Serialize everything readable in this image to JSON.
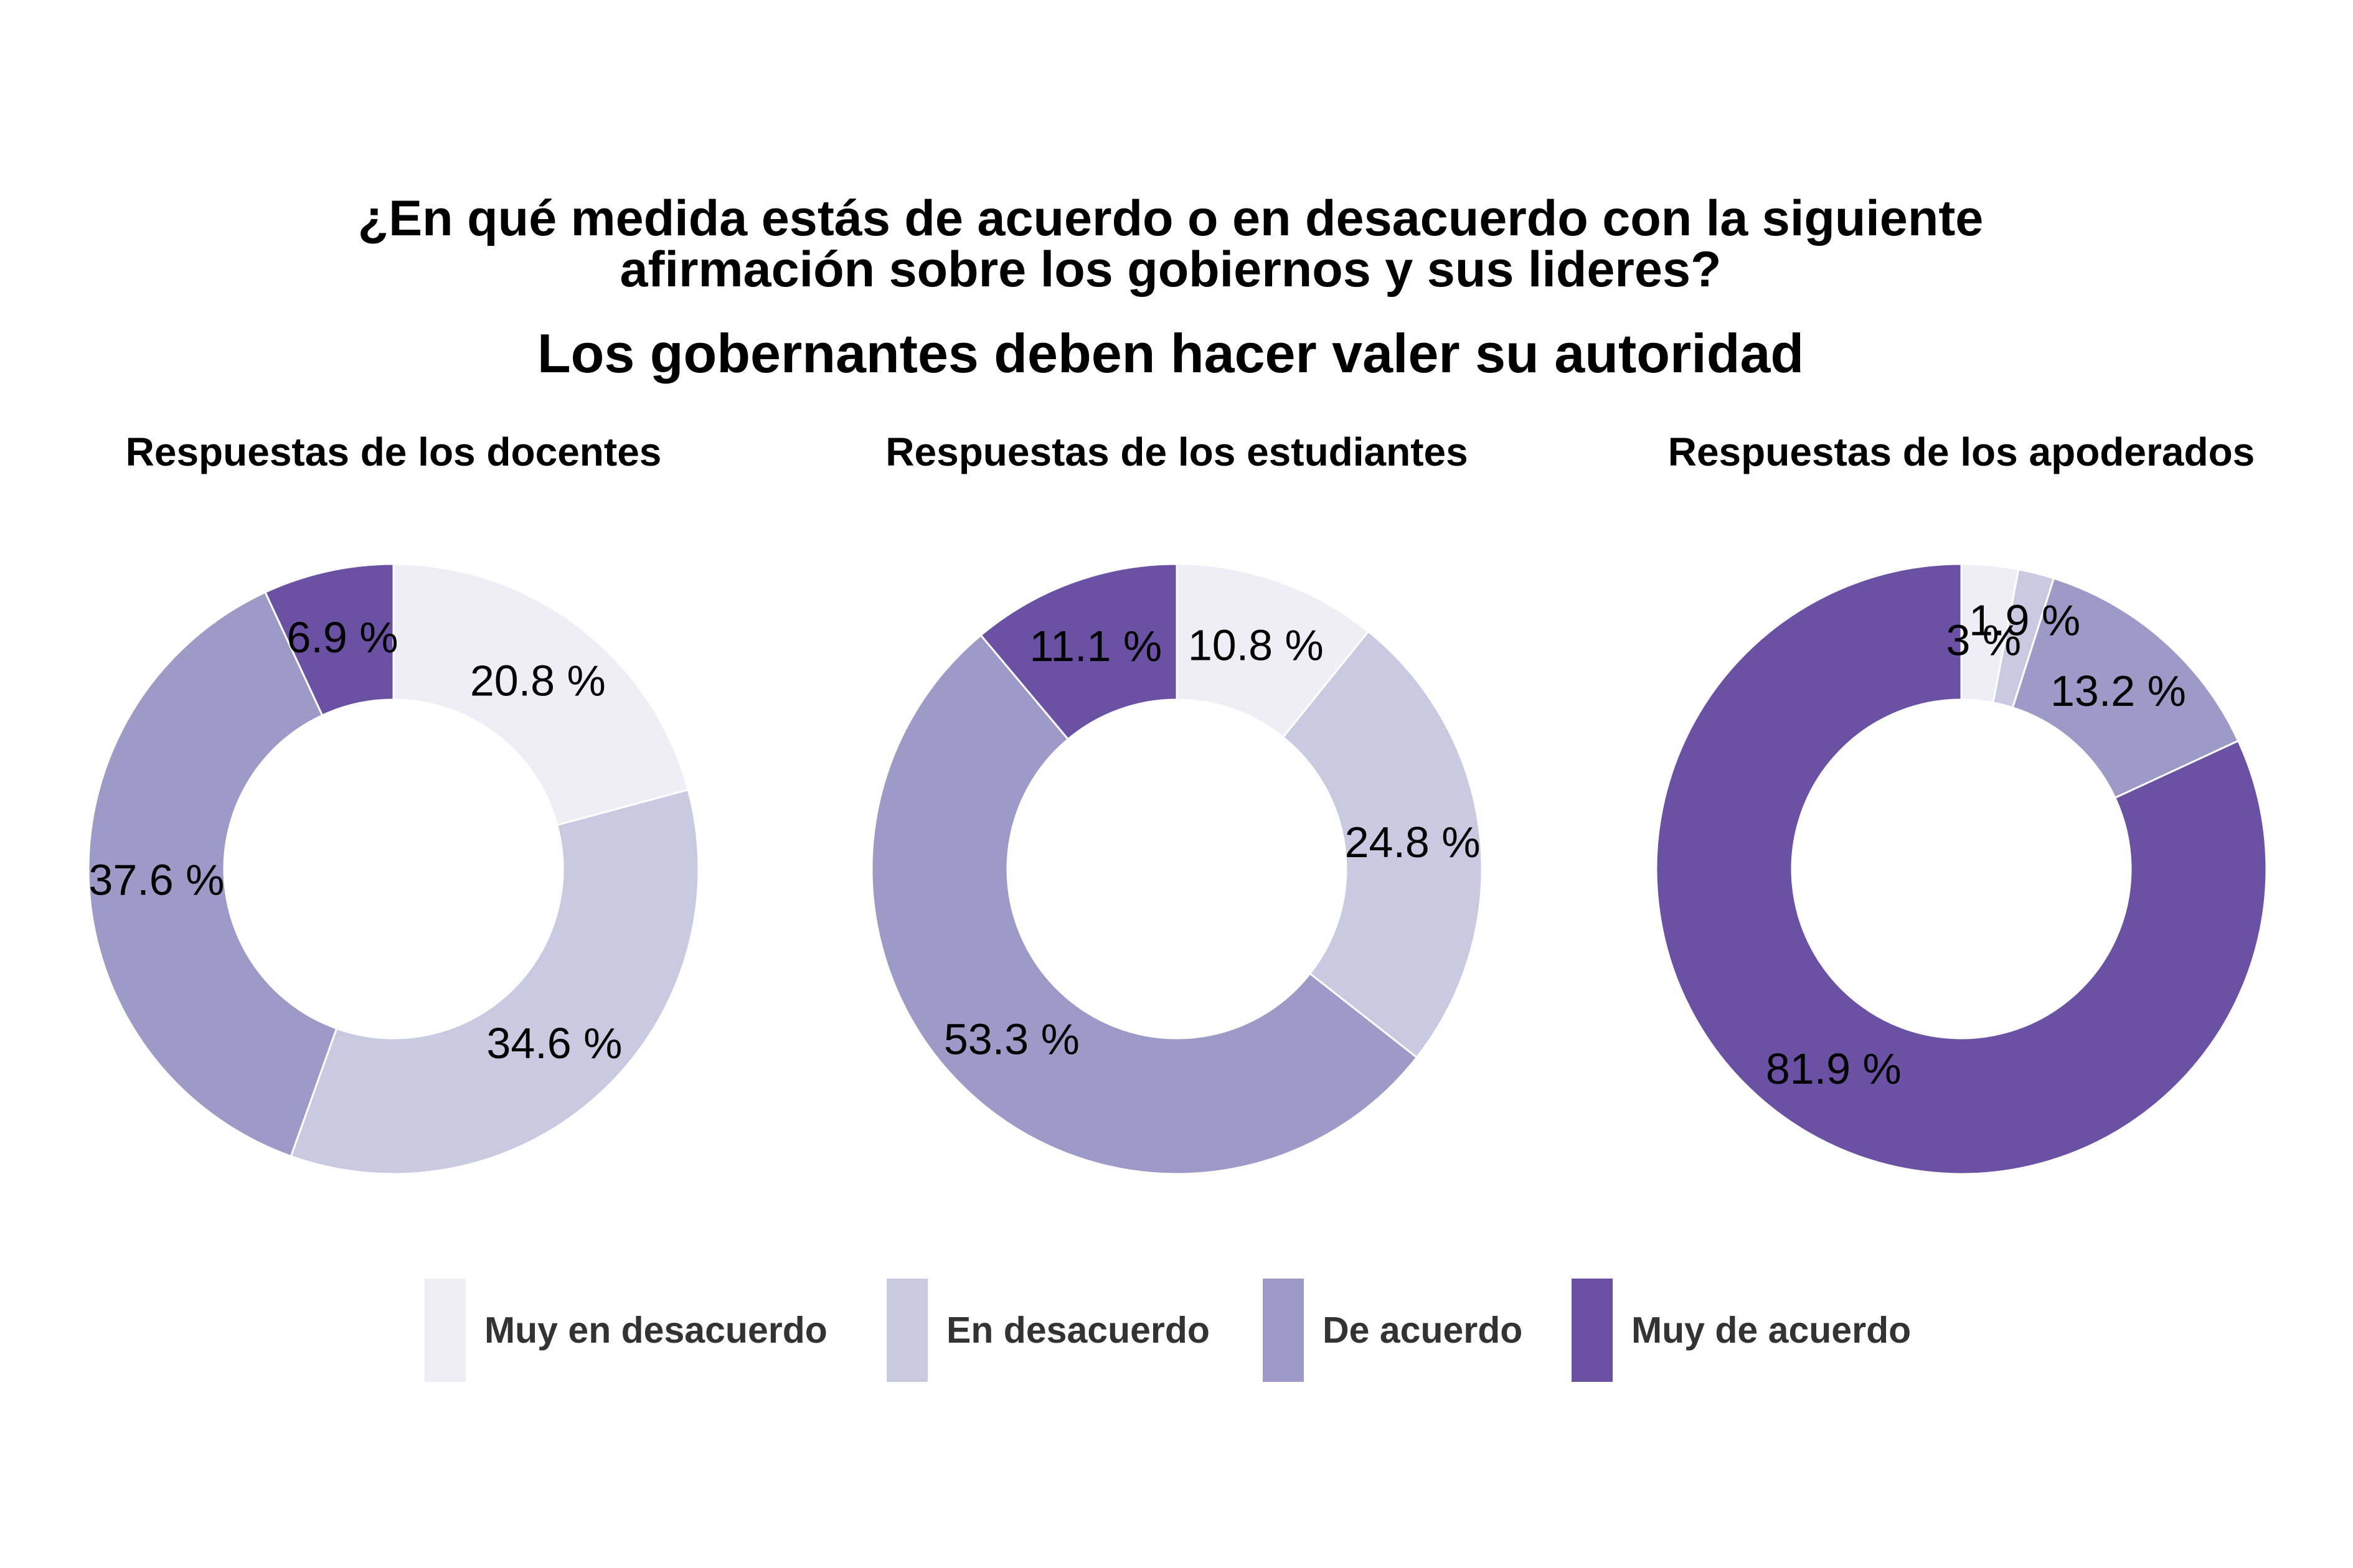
{
  "title_lines": [
    "¿En qué medida estás de acuerdo o en desacuerdo con la siguiente",
    "afirmación sobre los gobiernos y sus lideres?"
  ],
  "subtitle": "Los gobernantes deben hacer valer su autoridad",
  "categories": [
    "Muy en desacuerdo",
    "En desacuerdo",
    "De acuerdo",
    "Muy de acuerdo"
  ],
  "colors": {
    "Muy en desacuerdo": "#efedf5",
    "En desacuerdo": "#cbc9e2",
    "De acuerdo": "#9e9ac8",
    "Muy de acuerdo": "#6a51a3"
  },
  "legend": {
    "position": "bottom",
    "items": [
      {
        "label": "Muy en desacuerdo",
        "color": "#efedf5"
      },
      {
        "label": "En desacuerdo",
        "color": "#cbc9e2"
      },
      {
        "label": "De acuerdo",
        "color": "#9e9ac8"
      },
      {
        "label": "Muy de acuerdo",
        "color": "#6a51a3"
      }
    ]
  },
  "chart_data": [
    {
      "type": "pie",
      "title": "Respuestas de los docentes",
      "slices": [
        {
          "category": "Muy en desacuerdo",
          "value": 20.8,
          "label": "20.8 %"
        },
        {
          "category": "En desacuerdo",
          "value": 34.6,
          "label": "34.6 %"
        },
        {
          "category": "De acuerdo",
          "value": 37.6,
          "label": "37.6 %"
        },
        {
          "category": "Muy de acuerdo",
          "value": 6.9,
          "label": "6.9 %"
        }
      ]
    },
    {
      "type": "pie",
      "title": "Respuestas de los estudiantes",
      "slices": [
        {
          "category": "Muy en desacuerdo",
          "value": 10.8,
          "label": "10.8 %"
        },
        {
          "category": "En desacuerdo",
          "value": 24.8,
          "label": "24.8 %"
        },
        {
          "category": "De acuerdo",
          "value": 53.3,
          "label": "53.3 %"
        },
        {
          "category": "Muy de acuerdo",
          "value": 11.1,
          "label": "11.1 %"
        }
      ]
    },
    {
      "type": "pie",
      "title": "Respuestas de los apoderados",
      "slices": [
        {
          "category": "Muy en desacuerdo",
          "value": 3,
          "label": "3 %"
        },
        {
          "category": "En desacuerdo",
          "value": 1.9,
          "label": "1.9 %"
        },
        {
          "category": "De acuerdo",
          "value": 13.2,
          "label": "13.2 %"
        },
        {
          "category": "Muy de acuerdo",
          "value": 81.9,
          "label": "81.9 %"
        }
      ]
    }
  ]
}
